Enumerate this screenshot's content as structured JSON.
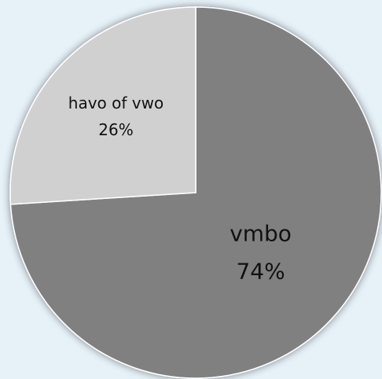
{
  "chart_data": {
    "type": "pie",
    "categories": [
      "vmbo",
      "havo of vwo"
    ],
    "values": [
      74,
      26
    ],
    "value_labels": [
      "74%",
      "26%"
    ],
    "colors": [
      "#808080",
      "#d0d0d0"
    ]
  }
}
